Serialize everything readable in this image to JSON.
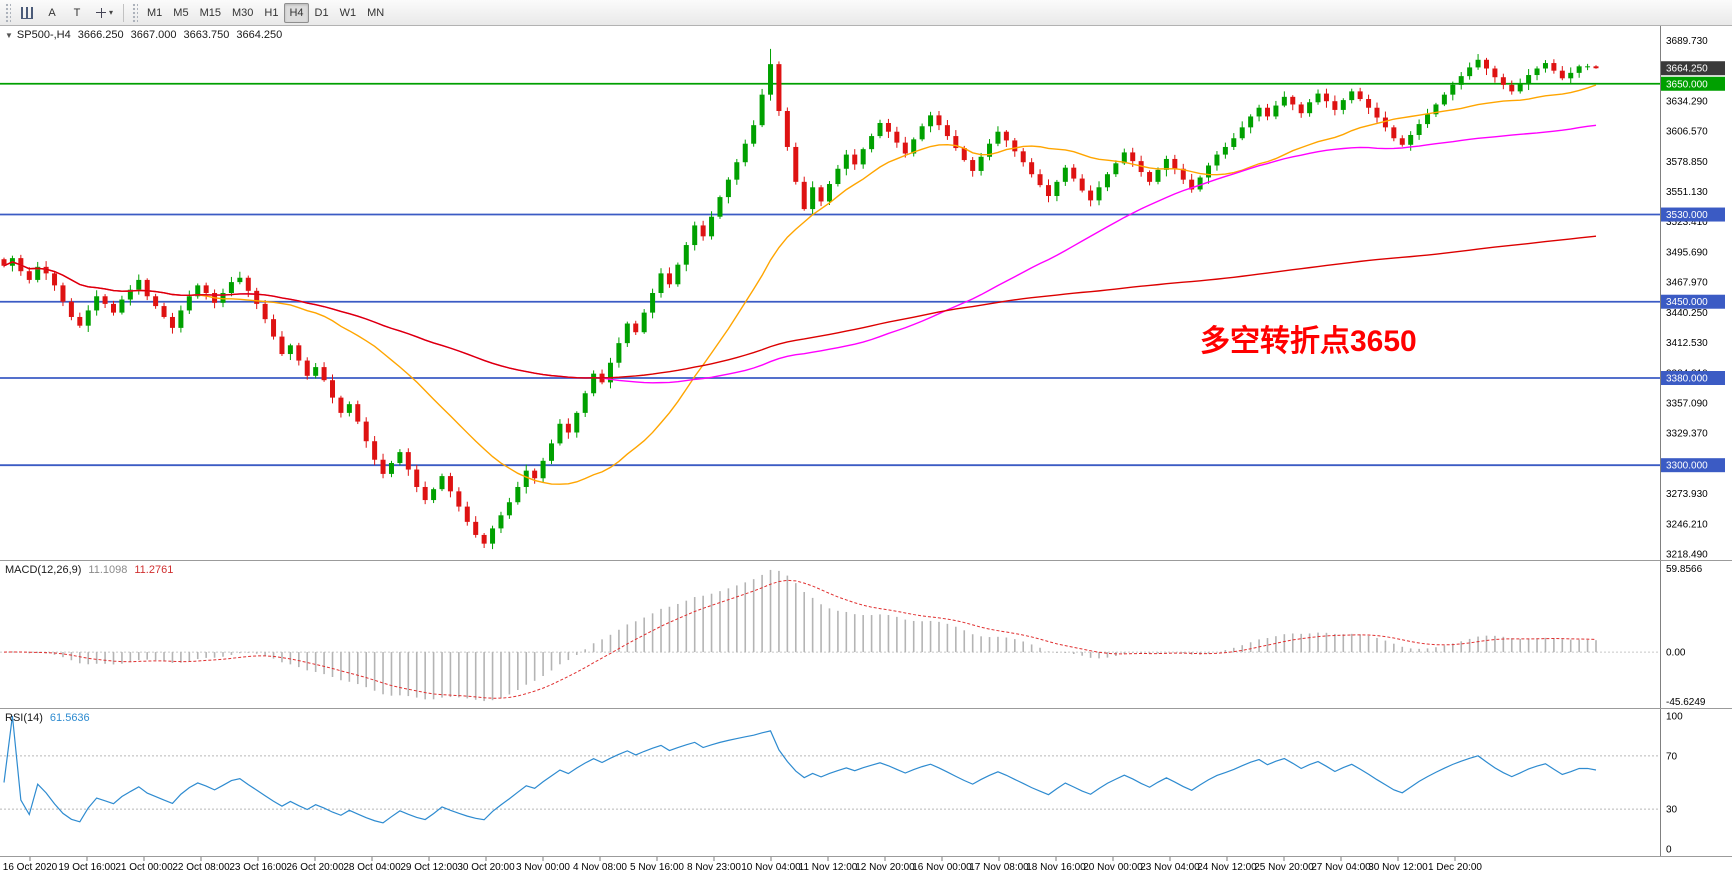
{
  "toolbar": {
    "tools": {
      "a_label": "A",
      "t_label": "T"
    },
    "timeframes": [
      "M1",
      "M5",
      "M15",
      "M30",
      "H1",
      "H4",
      "D1",
      "W1",
      "MN"
    ],
    "active_timeframe": "H4"
  },
  "chart_header": {
    "marker": "▼",
    "symbol": "SP500-,H4",
    "open": "3666.250",
    "high": "3667.000",
    "low": "3663.750",
    "close": "3664.250"
  },
  "chart_data": {
    "type": "candlestick",
    "title": "SP500-,H4",
    "timeframe": "H4",
    "y_range": [
      3213,
      3703
    ],
    "current_price": 3664.25,
    "price_ticks": [
      3689.73,
      3662.01,
      3634.29,
      3606.57,
      3578.85,
      3551.13,
      3523.41,
      3495.69,
      3467.97,
      3440.25,
      3412.53,
      3384.81,
      3357.09,
      3329.37,
      3301.65,
      3273.93,
      3246.21,
      3218.49
    ],
    "levels": [
      {
        "value": 3650,
        "label": "3650.000",
        "color": "#00a000"
      },
      {
        "value": 3530,
        "label": "3530.000",
        "color": "#3b5bc4"
      },
      {
        "value": 3450,
        "label": "3450.000",
        "color": "#3b5bc4"
      },
      {
        "value": 3380,
        "label": "3380.000",
        "color": "#3b5bc4"
      },
      {
        "value": 3300,
        "label": "3300.000",
        "color": "#3b5bc4"
      }
    ],
    "colors": {
      "bull": "#00a000",
      "bear": "#de1212",
      "ma_fast": "#ffa500",
      "ma_mid": "#ff00ff",
      "ma_slow": "#dc0000",
      "macd_hist": "#b4b4b4",
      "macd_signal": "#e03030",
      "rsi_line": "#2e8bd0",
      "current_price_box": "#3a3a3a"
    },
    "candles": {
      "closes": [
        3483,
        3490,
        3478,
        3470,
        3482,
        3476,
        3465,
        3450,
        3436,
        3428,
        3442,
        3455,
        3448,
        3440,
        3452,
        3461,
        3470,
        3455,
        3446,
        3436,
        3426,
        3442,
        3455,
        3465,
        3458,
        3449,
        3458,
        3468,
        3472,
        3460,
        3448,
        3434,
        3418,
        3402,
        3410,
        3396,
        3382,
        3390,
        3378,
        3362,
        3348,
        3356,
        3340,
        3322,
        3305,
        3292,
        3302,
        3312,
        3296,
        3280,
        3268,
        3278,
        3290,
        3276,
        3262,
        3248,
        3236,
        3228,
        3242,
        3254,
        3266,
        3280,
        3295,
        3288,
        3304,
        3320,
        3338,
        3330,
        3348,
        3366,
        3384,
        3376,
        3394,
        3412,
        3430,
        3422,
        3440,
        3458,
        3476,
        3466,
        3484,
        3502,
        3520,
        3510,
        3528,
        3546,
        3562,
        3578,
        3595,
        3612,
        3640,
        3668,
        3625,
        3592,
        3560,
        3535,
        3555,
        3542,
        3558,
        3572,
        3585,
        3576,
        3590,
        3602,
        3614,
        3606,
        3596,
        3586,
        3599,
        3611,
        3621,
        3612,
        3602,
        3591,
        3580,
        3570,
        3583,
        3595,
        3606,
        3598,
        3588,
        3578,
        3567,
        3557,
        3547,
        3560,
        3573,
        3563,
        3552,
        3543,
        3555,
        3567,
        3577,
        3587,
        3579,
        3569,
        3560,
        3571,
        3581,
        3572,
        3562,
        3553,
        3564,
        3575,
        3585,
        3592,
        3600,
        3610,
        3620,
        3628,
        3620,
        3630,
        3638,
        3631,
        3623,
        3633,
        3641,
        3634,
        3626,
        3635,
        3643,
        3636,
        3628,
        3619,
        3610,
        3600,
        3594,
        3603,
        3613,
        3622,
        3631,
        3640,
        3649,
        3657,
        3665,
        3672,
        3664,
        3656,
        3649,
        3643,
        3650,
        3658,
        3664,
        3669,
        3662,
        3655,
        3660,
        3666,
        3666,
        3664.25
      ],
      "wick_high": {
        "index": 91,
        "value": 3682
      },
      "wick_low": {
        "index": 57,
        "value": 3224
      },
      "last_bar": {
        "open": 3666.25,
        "high": 3667.0,
        "low": 3663.75,
        "close": 3664.25
      }
    },
    "x_labels": [
      "16 Oct 2020",
      "19 Oct 16:00",
      "21 Oct 00:00",
      "22 Oct 08:00",
      "23 Oct 16:00",
      "26 Oct 20:00",
      "28 Oct 04:00",
      "29 Oct 12:00",
      "30 Oct 20:00",
      "3 Nov 00:00",
      "4 Nov 08:00",
      "5 Nov 16:00",
      "8 Nov 23:00",
      "10 Nov 04:00",
      "11 Nov 12:00",
      "12 Nov 20:00",
      "16 Nov 00:00",
      "17 Nov 08:00",
      "18 Nov 16:00",
      "20 Nov 00:00",
      "23 Nov 04:00",
      "24 Nov 12:00",
      "25 Nov 20:00",
      "27 Nov 04:00",
      "30 Nov 12:00",
      "1 Dec 20:00"
    ],
    "indicators": {
      "macd": {
        "label": "MACD(12,26,9)",
        "value_main": "11.1098",
        "value_signal": "11.2761",
        "scale_labels": [
          "59.8566",
          "0.00",
          "-45.6249"
        ]
      },
      "rsi": {
        "label": "RSI(14)",
        "value": "61.5636",
        "scale_labels": [
          "100",
          "70",
          "30",
          "0"
        ],
        "levels": [
          70,
          30
        ]
      }
    },
    "annotation": {
      "text": "多空转折点3650",
      "color": "#ff0000"
    }
  }
}
